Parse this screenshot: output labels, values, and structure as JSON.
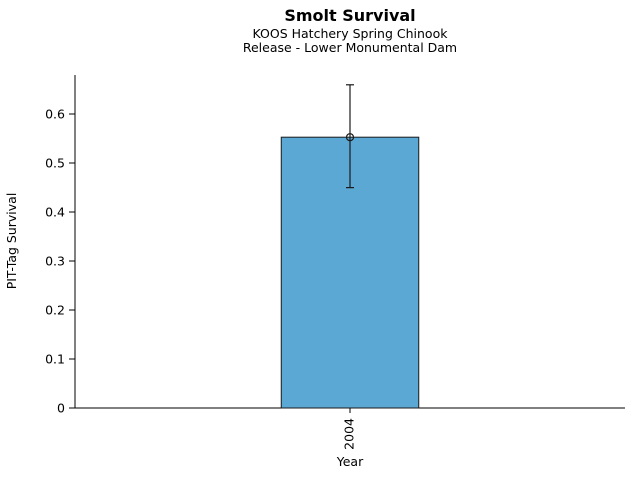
{
  "header": {
    "title": "Smolt Survival",
    "subtitle1": "KOOS Hatchery Spring Chinook",
    "subtitle2": "Release - Lower Monumental Dam"
  },
  "axes": {
    "ylabel": "PIT-Tag Survival",
    "xlabel": "Year"
  },
  "chart_data": {
    "type": "bar",
    "title": "Smolt Survival",
    "subtitle1": "KOOS Hatchery Spring Chinook",
    "subtitle2": "Release - Lower Monumental Dam",
    "xlabel": "Year",
    "ylabel": "PIT-Tag Survival",
    "categories": [
      "2004"
    ],
    "values": [
      0.553
    ],
    "error_low": [
      0.45
    ],
    "error_high": [
      0.66
    ],
    "ylim": [
      0,
      0.68
    ],
    "yticks": [
      0,
      0.1,
      0.2,
      0.3,
      0.4,
      0.5,
      0.6
    ],
    "grid": false,
    "legend": "none",
    "bar_color": "#5BA8D4",
    "edge_color": "#1a1a1a"
  }
}
